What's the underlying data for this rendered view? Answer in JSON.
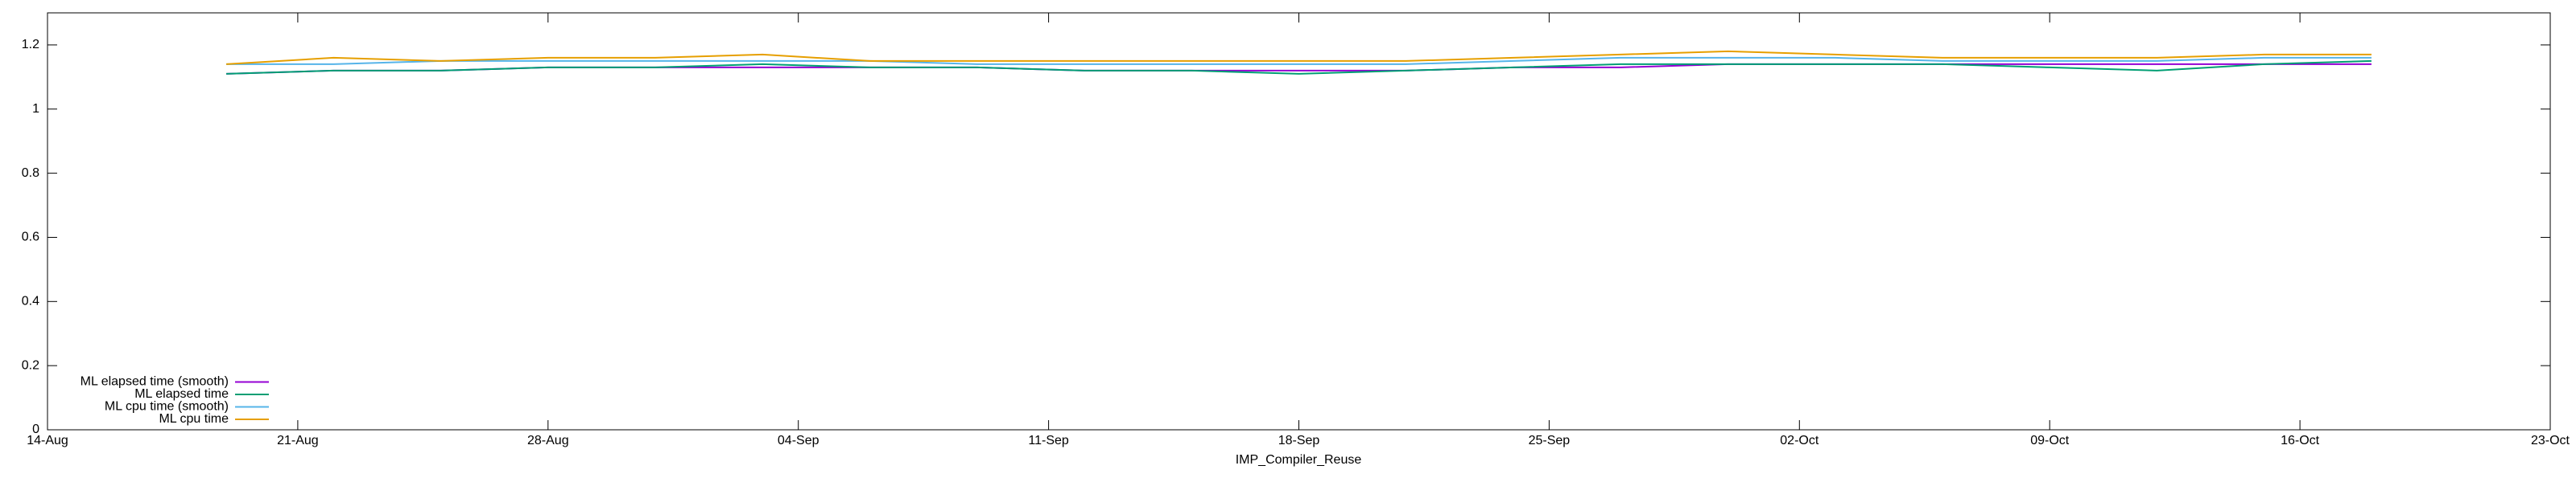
{
  "chart_data": {
    "type": "line",
    "xlabel": "IMP_Compiler_Reuse",
    "x": [
      "19-Aug",
      "22-Aug",
      "25-Aug",
      "28-Aug",
      "31-Aug",
      "03-Sep",
      "06-Sep",
      "09-Sep",
      "12-Sep",
      "15-Sep",
      "18-Sep",
      "21-Sep",
      "24-Sep",
      "27-Sep",
      "30-Sep",
      "03-Oct",
      "06-Oct",
      "09-Oct",
      "12-Oct",
      "15-Oct",
      "18-Oct"
    ],
    "xlim": [
      "14-Aug",
      "23-Oct"
    ],
    "xticks": [
      "14-Aug",
      "21-Aug",
      "28-Aug",
      "04-Sep",
      "11-Sep",
      "18-Sep",
      "25-Sep",
      "02-Oct",
      "09-Oct",
      "16-Oct",
      "23-Oct"
    ],
    "ylim": [
      0,
      1.3
    ],
    "yticks": [
      0,
      0.2,
      0.4,
      0.6,
      0.8,
      1,
      1.2
    ],
    "legend": "lower left",
    "series": [
      {
        "name": "ML elapsed time (smooth)",
        "color": "#9400d3",
        "values": [
          1.11,
          1.12,
          1.12,
          1.13,
          1.13,
          1.13,
          1.13,
          1.13,
          1.12,
          1.12,
          1.12,
          1.12,
          1.13,
          1.13,
          1.14,
          1.14,
          1.14,
          1.14,
          1.14,
          1.14,
          1.14
        ]
      },
      {
        "name": "ML elapsed time",
        "color": "#009e73",
        "values": [
          1.11,
          1.12,
          1.12,
          1.13,
          1.13,
          1.14,
          1.13,
          1.13,
          1.12,
          1.12,
          1.11,
          1.12,
          1.13,
          1.14,
          1.14,
          1.14,
          1.14,
          1.13,
          1.12,
          1.14,
          1.15
        ]
      },
      {
        "name": "ML cpu time (smooth)",
        "color": "#56b4e9",
        "values": [
          1.14,
          1.14,
          1.15,
          1.15,
          1.15,
          1.15,
          1.15,
          1.14,
          1.14,
          1.14,
          1.14,
          1.14,
          1.15,
          1.16,
          1.16,
          1.16,
          1.15,
          1.15,
          1.15,
          1.16,
          1.16
        ]
      },
      {
        "name": "ML cpu time",
        "color": "#e69f00",
        "values": [
          1.14,
          1.16,
          1.15,
          1.16,
          1.16,
          1.17,
          1.15,
          1.15,
          1.15,
          1.15,
          1.15,
          1.15,
          1.16,
          1.17,
          1.18,
          1.17,
          1.16,
          1.16,
          1.16,
          1.17,
          1.17
        ]
      }
    ]
  }
}
